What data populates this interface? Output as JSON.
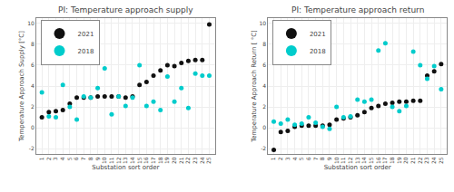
{
  "chart_data": [
    {
      "type": "scatter",
      "title": "PI: Temperature approach supply",
      "x_label": "Substation sort order",
      "y_label": "Temperature Approach Supply [°C]",
      "x": [
        1,
        2,
        3,
        4,
        5,
        6,
        7,
        8,
        9,
        10,
        11,
        12,
        13,
        14,
        15,
        16,
        17,
        18,
        19,
        20,
        21,
        22,
        23,
        24,
        25
      ],
      "series": [
        {
          "name": "2021",
          "color": "#111111",
          "values": [
            1.0,
            1.5,
            1.6,
            1.7,
            2.3,
            2.9,
            2.9,
            2.9,
            3.0,
            3.0,
            3.0,
            3.0,
            2.9,
            3.0,
            4.1,
            4.4,
            5.0,
            5.5,
            6.0,
            5.9,
            6.2,
            6.4,
            6.5,
            6.5,
            9.9
          ]
        },
        {
          "name": "2018",
          "color": "#00CCCC",
          "values": [
            3.4,
            1.1,
            1.0,
            4.1,
            2.0,
            0.8,
            3.0,
            2.9,
            3.8,
            5.7,
            1.3,
            3.0,
            2.1,
            2.9,
            6.0,
            2.1,
            2.5,
            1.7,
            4.9,
            2.5,
            3.8,
            1.9,
            5.2,
            5.0,
            5.0
          ]
        }
      ],
      "xlim": [
        0.2,
        25.8
      ],
      "xticks": [
        1,
        2,
        3,
        4,
        5,
        6,
        7,
        8,
        9,
        10,
        11,
        12,
        13,
        14,
        15,
        16,
        17,
        18,
        19,
        20,
        21,
        22,
        23,
        24,
        25
      ],
      "ylim": [
        -2.5,
        10.5
      ],
      "yticks": [
        -2,
        0,
        2,
        4,
        6,
        8,
        10
      ],
      "grid": true,
      "legend": "upper left"
    },
    {
      "type": "scatter",
      "title": "PI: Temperature approach return",
      "x_label": "Substation sort order",
      "y_label": "Temperature Approach Return [ °C]",
      "x": [
        1,
        2,
        3,
        4,
        5,
        6,
        7,
        8,
        9,
        10,
        11,
        12,
        13,
        14,
        15,
        16,
        17,
        18,
        19,
        20,
        21,
        22,
        23,
        24,
        25
      ],
      "series": [
        {
          "name": "2021",
          "color": "#111111",
          "values": [
            -2.1,
            -0.4,
            -0.3,
            0.1,
            0.2,
            0.2,
            0.2,
            0.2,
            0.3,
            0.8,
            0.9,
            1.0,
            1.2,
            1.5,
            1.9,
            2.1,
            2.3,
            2.4,
            2.5,
            2.5,
            2.6,
            2.6,
            5.0,
            5.4,
            6.1
          ]
        },
        {
          "name": "2018",
          "color": "#00CCCC",
          "values": [
            0.6,
            0.4,
            0.8,
            0.3,
            0.4,
            1.0,
            0.5,
            0.1,
            -0.1,
            2.0,
            1.0,
            1.1,
            2.7,
            2.5,
            2.7,
            7.4,
            8.1,
            2.0,
            1.6,
            2.1,
            7.3,
            6.0,
            4.7,
            5.9,
            3.7
          ]
        }
      ],
      "xlim": [
        0.2,
        25.8
      ],
      "xticks": [
        1,
        2,
        3,
        4,
        5,
        6,
        7,
        8,
        9,
        10,
        11,
        12,
        13,
        14,
        15,
        16,
        17,
        18,
        19,
        20,
        21,
        22,
        23,
        24,
        25
      ],
      "ylim": [
        -2.5,
        10.5
      ],
      "yticks": [
        -2,
        0,
        2,
        4,
        6,
        8,
        10
      ],
      "grid": true,
      "legend": "upper left"
    }
  ]
}
